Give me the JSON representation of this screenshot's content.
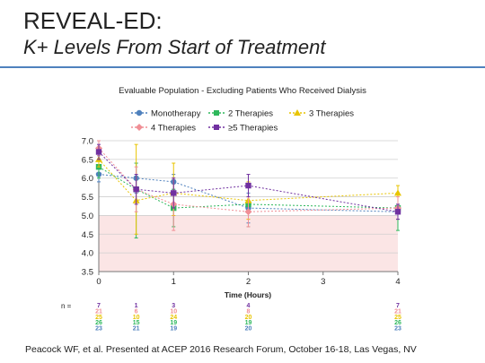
{
  "slide": {
    "title": "REVEAL-ED:",
    "subtitle": "K+ Levels From Start of Treatment",
    "citation": "Peacock WF, et al. Presented at ACEP 2016 Research Forum, October 16-18, Las Vegas, NV",
    "accent_color": "#4f81bd"
  },
  "chart_data": {
    "type": "line",
    "title": "Evaluable Population - Excluding Patients Who Received Dialysis",
    "xlabel": "Time (Hours)",
    "ylabel": "",
    "x_ticks": [
      0,
      1,
      2,
      3,
      4
    ],
    "y_ticks": [
      "3.5",
      "4.0",
      "4.5",
      "5.0",
      "5.5",
      "6.0",
      "6.5",
      "7.0"
    ],
    "xlim": [
      0,
      4
    ],
    "ylim": [
      3.5,
      7.0
    ],
    "grid": true,
    "reference_band": {
      "from": 3.5,
      "to": 5.0,
      "color": "#fbe5e5"
    },
    "legend_position": "top",
    "series": [
      {
        "name": "Monotherapy",
        "color": "#4f81bd",
        "marker": "circle",
        "x": [
          0,
          0.5,
          1,
          2,
          4
        ],
        "values": [
          6.1,
          6.0,
          5.9,
          5.2,
          5.1
        ],
        "err_low": [
          5.9,
          5.6,
          5.7,
          4.8,
          4.9
        ],
        "err_high": [
          6.3,
          6.4,
          6.1,
          5.6,
          5.3
        ]
      },
      {
        "name": "2 Therapies",
        "color": "#2eb85c",
        "marker": "square",
        "x": [
          0,
          0.5,
          1,
          2,
          4
        ],
        "values": [
          6.3,
          5.7,
          5.2,
          5.3,
          5.2
        ],
        "err_low": [
          6.0,
          4.4,
          4.7,
          4.7,
          4.6
        ],
        "err_high": [
          6.6,
          6.4,
          5.7,
          5.8,
          5.6
        ]
      },
      {
        "name": "3 Therapies",
        "color": "#e8c400",
        "marker": "triangle",
        "x": [
          0,
          0.5,
          1,
          2,
          4
        ],
        "values": [
          6.5,
          5.4,
          5.6,
          5.4,
          5.6
        ],
        "err_low": [
          6.3,
          4.5,
          5.0,
          4.9,
          5.2
        ],
        "err_high": [
          6.7,
          6.9,
          6.4,
          5.9,
          5.8
        ]
      },
      {
        "name": "4 Therapies",
        "color": "#f08f96",
        "marker": "diamond",
        "x": [
          0,
          0.5,
          1,
          2,
          4
        ],
        "values": [
          6.8,
          5.7,
          5.3,
          5.1,
          5.2
        ],
        "err_low": [
          6.6,
          5.1,
          4.6,
          4.7,
          4.9
        ],
        "err_high": [
          7.0,
          6.3,
          6.0,
          5.5,
          5.5
        ]
      },
      {
        "name": "≥5 Therapies",
        "color": "#7030a0",
        "marker": "square",
        "x": [
          0,
          0.5,
          1,
          2,
          4
        ],
        "values": [
          6.7,
          5.7,
          5.6,
          5.8,
          5.1
        ],
        "err_low": [
          6.5,
          5.3,
          5.2,
          5.5,
          4.9
        ],
        "err_high": [
          6.9,
          6.1,
          6.0,
          6.1,
          5.3
        ]
      }
    ],
    "n_table": {
      "label": "n =",
      "x": [
        0,
        0.5,
        1,
        2,
        4
      ],
      "rows": [
        {
          "color": "#7030a0",
          "values": [
            "7",
            "1",
            "3",
            "4",
            "7"
          ]
        },
        {
          "color": "#f08f96",
          "values": [
            "21",
            "6",
            "10",
            "8",
            "21"
          ]
        },
        {
          "color": "#e8c400",
          "values": [
            "25",
            "10",
            "24",
            "20",
            "25"
          ]
        },
        {
          "color": "#2eb85c",
          "values": [
            "26",
            "15",
            "19",
            "19",
            "26"
          ]
        },
        {
          "color": "#4f81bd",
          "values": [
            "23",
            "21",
            "19",
            "20",
            "23"
          ]
        }
      ]
    }
  }
}
